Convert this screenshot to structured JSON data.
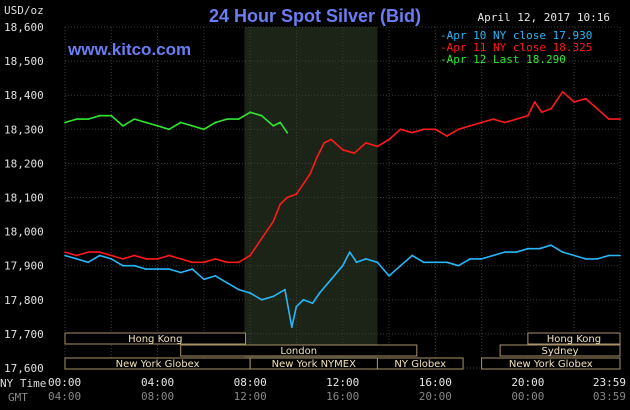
{
  "header": {
    "title": "24 Hour Spot Silver (Bid)",
    "url": "www.kitco.com",
    "y_unit": "USD/oz",
    "timestamp": "April 12, 2017 10:16"
  },
  "legend": [
    {
      "text": "-Apr 10 NY close 17.930",
      "color": "#29b6f6"
    },
    {
      "text": "-Apr 11 NY close 18.325",
      "color": "#ff1a1a"
    },
    {
      "text": "-Apr 12 Last 18.290",
      "color": "#2ee82e"
    }
  ],
  "axis": {
    "ny_time_label": "NY Time",
    "gmt_label": "GMT",
    "ny_ticks": [
      "00:00",
      "04:00",
      "08:00",
      "12:00",
      "16:00",
      "20:00",
      "23:59"
    ],
    "gmt_ticks": [
      "04:00",
      "08:00",
      "12:00",
      "16:00",
      "20:00",
      "00:00",
      "03:59"
    ]
  },
  "markets": [
    {
      "name": "Hong Kong",
      "start": 0,
      "end": 7.8
    },
    {
      "name": "London",
      "start": 5.0,
      "end": 15.2
    },
    {
      "name": "New York Globex",
      "start": 0,
      "end": 8.0
    },
    {
      "name": "New York NYMEX",
      "start": 8.0,
      "end": 13.5
    },
    {
      "name": "NY Globex",
      "start": 13.5,
      "end": 17.2
    },
    {
      "name": "Hong Kong",
      "start": 20.0,
      "end": 23.98
    },
    {
      "name": "Sydney",
      "start": 18.8,
      "end": 23.98
    },
    {
      "name": "New York Globex",
      "start": 18.0,
      "end": 23.98
    }
  ],
  "chart_data": {
    "type": "line",
    "title": "24 Hour Spot Silver (Bid)",
    "ylabel": "USD/oz",
    "xlabel": "NY Time",
    "xlim": [
      0,
      23.98
    ],
    "ylim": [
      17.6,
      18.6
    ],
    "y_ticks": [
      "17,600",
      "17,700",
      "17,800",
      "17,900",
      "18,000",
      "18,100",
      "18,200",
      "18,300",
      "18,400",
      "18,500",
      "18,600"
    ],
    "x_ticks": [
      "00:00",
      "04:00",
      "08:00",
      "12:00",
      "16:00",
      "20:00",
      "23:59"
    ],
    "highlight_range": [
      7.75,
      13.5
    ],
    "grid": true,
    "legend_position": "top-right",
    "series": [
      {
        "name": "Apr 10 NY close 17,930",
        "color": "#29b6f6",
        "x": [
          0,
          0.5,
          1.0,
          1.5,
          2.0,
          2.5,
          3.0,
          3.5,
          4.0,
          4.5,
          5.0,
          5.5,
          6.0,
          6.5,
          7.0,
          7.5,
          8.0,
          8.5,
          9.0,
          9.5,
          9.8,
          10.0,
          10.3,
          10.7,
          11.0,
          11.5,
          12.0,
          12.3,
          12.6,
          13.0,
          13.5,
          14.0,
          14.5,
          15.0,
          15.5,
          16.0,
          16.5,
          17.0,
          17.5,
          18.0,
          18.5,
          19.0,
          19.5,
          20.0,
          20.5,
          21.0,
          21.5,
          22.0,
          22.5,
          23.0,
          23.5,
          23.98
        ],
        "y": [
          17.93,
          17.92,
          17.91,
          17.93,
          17.92,
          17.9,
          17.9,
          17.89,
          17.89,
          17.89,
          17.88,
          17.89,
          17.86,
          17.87,
          17.85,
          17.83,
          17.82,
          17.8,
          17.81,
          17.83,
          17.72,
          17.78,
          17.8,
          17.79,
          17.82,
          17.86,
          17.9,
          17.94,
          17.91,
          17.92,
          17.91,
          17.87,
          17.9,
          17.93,
          17.91,
          17.91,
          17.91,
          17.9,
          17.92,
          17.92,
          17.93,
          17.94,
          17.94,
          17.95,
          17.95,
          17.96,
          17.94,
          17.93,
          17.92,
          17.92,
          17.93,
          17.93
        ]
      },
      {
        "name": "Apr 11 NY close 18,325",
        "color": "#ff1a1a",
        "x": [
          0,
          0.5,
          1.0,
          1.5,
          2.0,
          2.5,
          3.0,
          3.5,
          4.0,
          4.5,
          5.0,
          5.5,
          6.0,
          6.5,
          7.0,
          7.5,
          8.0,
          8.5,
          9.0,
          9.3,
          9.6,
          10.0,
          10.3,
          10.6,
          10.9,
          11.2,
          11.5,
          12.0,
          12.5,
          13.0,
          13.5,
          14.0,
          14.5,
          15.0,
          15.5,
          16.0,
          16.5,
          17.0,
          17.5,
          18.0,
          18.5,
          19.0,
          19.5,
          20.0,
          20.3,
          20.6,
          21.0,
          21.5,
          22.0,
          22.5,
          23.0,
          23.5,
          23.98
        ],
        "y": [
          17.94,
          17.93,
          17.94,
          17.94,
          17.93,
          17.92,
          17.93,
          17.92,
          17.92,
          17.93,
          17.92,
          17.91,
          17.91,
          17.92,
          17.91,
          17.91,
          17.93,
          17.98,
          18.03,
          18.08,
          18.1,
          18.11,
          18.14,
          18.17,
          18.22,
          18.26,
          18.27,
          18.24,
          18.23,
          18.26,
          18.25,
          18.27,
          18.3,
          18.29,
          18.3,
          18.3,
          18.28,
          18.3,
          18.31,
          18.32,
          18.33,
          18.32,
          18.33,
          18.34,
          18.38,
          18.35,
          18.36,
          18.41,
          18.38,
          18.39,
          18.36,
          18.33,
          18.33
        ]
      },
      {
        "name": "Apr 12 Last 18,290",
        "color": "#2ee82e",
        "x": [
          0,
          0.5,
          1.0,
          1.5,
          2.0,
          2.5,
          3.0,
          3.5,
          4.0,
          4.5,
          5.0,
          5.5,
          6.0,
          6.5,
          7.0,
          7.5,
          8.0,
          8.5,
          9.0,
          9.3,
          9.6
        ],
        "y": [
          18.32,
          18.33,
          18.33,
          18.34,
          18.34,
          18.31,
          18.33,
          18.32,
          18.31,
          18.3,
          18.32,
          18.31,
          18.3,
          18.32,
          18.33,
          18.33,
          18.35,
          18.34,
          18.31,
          18.32,
          18.29
        ]
      }
    ]
  }
}
